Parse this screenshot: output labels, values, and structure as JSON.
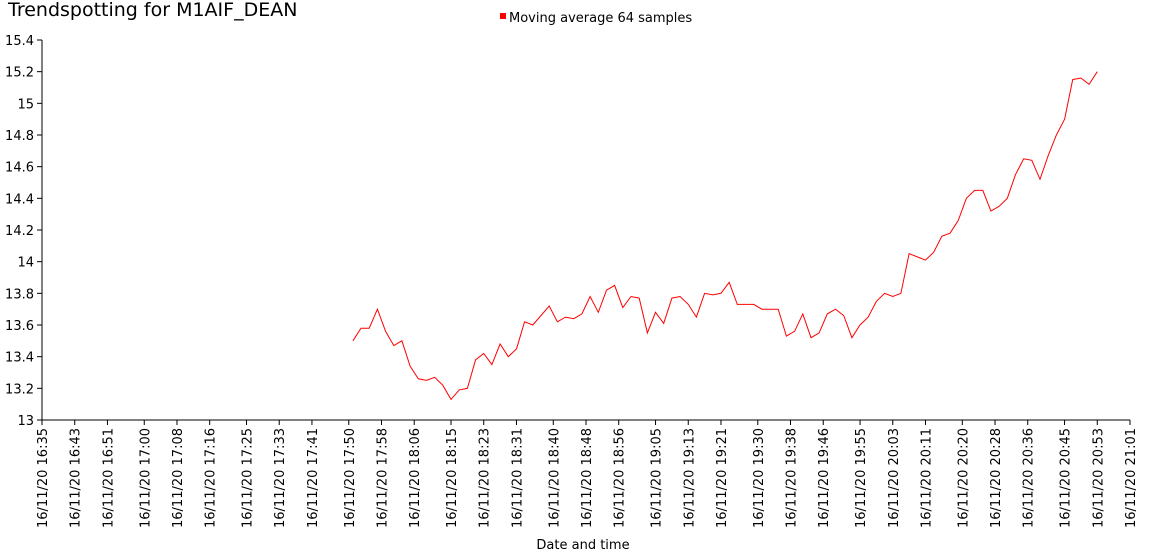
{
  "chart_data": {
    "type": "line",
    "title": "Trendspotting for M1AIF_DEAN",
    "x_label": "Date and time",
    "x": [
      "16/11/20 17:51",
      "16/11/20 17:53",
      "16/11/20 17:55",
      "16/11/20 17:57",
      "16/11/20 17:59",
      "16/11/20 18:01",
      "16/11/20 18:03",
      "16/11/20 18:05",
      "16/11/20 18:07",
      "16/11/20 18:09",
      "16/11/20 18:11",
      "16/11/20 18:13",
      "16/11/20 18:15",
      "16/11/20 18:17",
      "16/11/20 18:19",
      "16/11/20 18:21",
      "16/11/20 18:23",
      "16/11/20 18:25",
      "16/11/20 18:27",
      "16/11/20 18:29",
      "16/11/20 18:31",
      "16/11/20 18:33",
      "16/11/20 18:35",
      "16/11/20 18:37",
      "16/11/20 18:39",
      "16/11/20 18:41",
      "16/11/20 18:43",
      "16/11/20 18:45",
      "16/11/20 18:47",
      "16/11/20 18:49",
      "16/11/20 18:51",
      "16/11/20 18:53",
      "16/11/20 18:55",
      "16/11/20 18:57",
      "16/11/20 18:59",
      "16/11/20 19:01",
      "16/11/20 19:03",
      "16/11/20 19:05",
      "16/11/20 19:07",
      "16/11/20 19:09",
      "16/11/20 19:11",
      "16/11/20 19:13",
      "16/11/20 19:15",
      "16/11/20 19:17",
      "16/11/20 19:19",
      "16/11/20 19:21",
      "16/11/20 19:23",
      "16/11/20 19:25",
      "16/11/20 19:27",
      "16/11/20 19:29",
      "16/11/20 19:31",
      "16/11/20 19:33",
      "16/11/20 19:35",
      "16/11/20 19:37",
      "16/11/20 19:39",
      "16/11/20 19:41",
      "16/11/20 19:43",
      "16/11/20 19:45",
      "16/11/20 19:47",
      "16/11/20 19:49",
      "16/11/20 19:51",
      "16/11/20 19:53",
      "16/11/20 19:55",
      "16/11/20 19:57",
      "16/11/20 19:59",
      "16/11/20 20:01",
      "16/11/20 20:03",
      "16/11/20 20:05",
      "16/11/20 20:07",
      "16/11/20 20:09",
      "16/11/20 20:11",
      "16/11/20 20:13",
      "16/11/20 20:15",
      "16/11/20 20:17",
      "16/11/20 20:19",
      "16/11/20 20:21",
      "16/11/20 20:23",
      "16/11/20 20:25",
      "16/11/20 20:27",
      "16/11/20 20:29",
      "16/11/20 20:31",
      "16/11/20 20:33",
      "16/11/20 20:35",
      "16/11/20 20:37",
      "16/11/20 20:39",
      "16/11/20 20:41",
      "16/11/20 20:43",
      "16/11/20 20:45",
      "16/11/20 20:47",
      "16/11/20 20:49",
      "16/11/20 20:51",
      "16/11/20 20:53"
    ],
    "series": [
      {
        "name": "Moving average 64 samples",
        "color": "#ff0000",
        "values": [
          13.5,
          13.58,
          13.58,
          13.7,
          13.56,
          13.47,
          13.5,
          13.34,
          13.26,
          13.25,
          13.27,
          13.22,
          13.13,
          13.19,
          13.2,
          13.38,
          13.42,
          13.35,
          13.48,
          13.4,
          13.45,
          13.62,
          13.6,
          13.66,
          13.72,
          13.62,
          13.65,
          13.64,
          13.67,
          13.78,
          13.68,
          13.82,
          13.85,
          13.71,
          13.78,
          13.77,
          13.55,
          13.68,
          13.61,
          13.77,
          13.78,
          13.73,
          13.65,
          13.8,
          13.79,
          13.8,
          13.87,
          13.73,
          13.73,
          13.73,
          13.7,
          13.7,
          13.7,
          13.53,
          13.56,
          13.67,
          13.52,
          13.55,
          13.67,
          13.7,
          13.66,
          13.52,
          13.6,
          13.65,
          13.75,
          13.8,
          13.78,
          13.8,
          14.05,
          14.03,
          14.01,
          14.06,
          14.16,
          14.18,
          14.26,
          14.4,
          14.45,
          14.45,
          14.32,
          14.35,
          14.4,
          14.55,
          14.65,
          14.64,
          14.52,
          14.67,
          14.8,
          14.9,
          15.15,
          15.16,
          15.12,
          15.2
        ]
      }
    ],
    "xlim": [
      "16/11/20 16:35",
      "16/11/20 21:01"
    ],
    "xticks": [
      "16/11/20 16:35",
      "16/11/20 16:43",
      "16/11/20 16:51",
      "16/11/20 17:00",
      "16/11/20 17:08",
      "16/11/20 17:16",
      "16/11/20 17:25",
      "16/11/20 17:33",
      "16/11/20 17:41",
      "16/11/20 17:50",
      "16/11/20 17:58",
      "16/11/20 18:06",
      "16/11/20 18:15",
      "16/11/20 18:23",
      "16/11/20 18:31",
      "16/11/20 18:40",
      "16/11/20 18:48",
      "16/11/20 18:56",
      "16/11/20 19:05",
      "16/11/20 19:13",
      "16/11/20 19:21",
      "16/11/20 19:30",
      "16/11/20 19:38",
      "16/11/20 19:46",
      "16/11/20 19:55",
      "16/11/20 20:03",
      "16/11/20 20:11",
      "16/11/20 20:20",
      "16/11/20 20:28",
      "16/11/20 20:36",
      "16/11/20 20:45",
      "16/11/20 20:53",
      "16/11/20 21:01"
    ],
    "ylim": [
      13,
      15.4
    ],
    "yticks": [
      13,
      13.2,
      13.4,
      13.6,
      13.8,
      14,
      14.2,
      14.4,
      14.6,
      14.8,
      15,
      15.2,
      15.4
    ],
    "legend": "top"
  }
}
